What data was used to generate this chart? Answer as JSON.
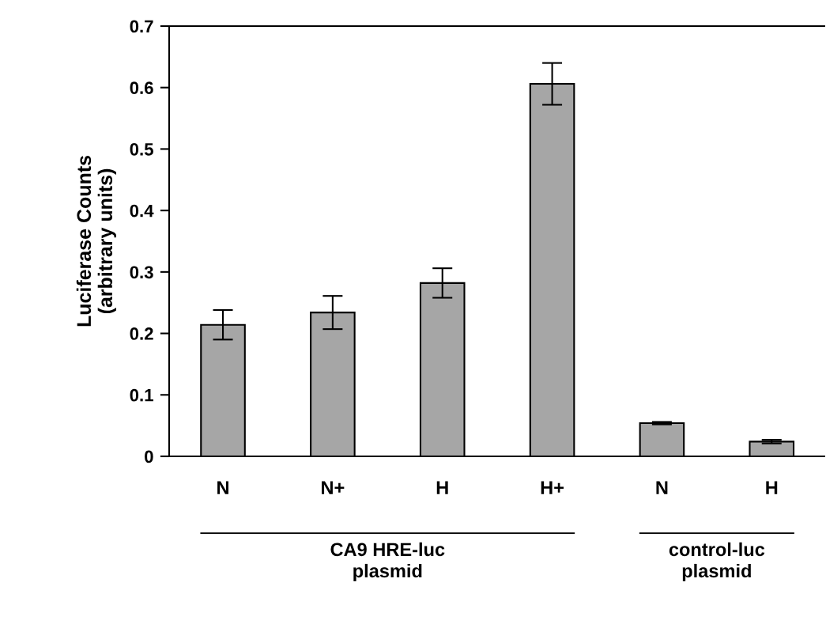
{
  "chart_data": {
    "type": "bar",
    "ylabel": "Luciferase Counts\n(arbitrary units)",
    "categories": [
      "N",
      "N+",
      "H",
      "H+",
      "N",
      "H"
    ],
    "values": [
      0.214,
      0.234,
      0.282,
      0.606,
      0.054,
      0.024
    ],
    "errors": [
      0.024,
      0.027,
      0.024,
      0.034,
      0.002,
      0.003
    ],
    "color": "#a6a6a6",
    "ylim": [
      0,
      0.7
    ],
    "yticks": [
      {
        "value": 0,
        "label": "0"
      },
      0.1,
      0.2,
      0.3,
      0.4,
      0.5,
      0.6,
      0.7
    ],
    "grid": false,
    "annotations": [
      "CA9 HRE-luc\nplasmid",
      "control-luc\nplasmid"
    ]
  }
}
